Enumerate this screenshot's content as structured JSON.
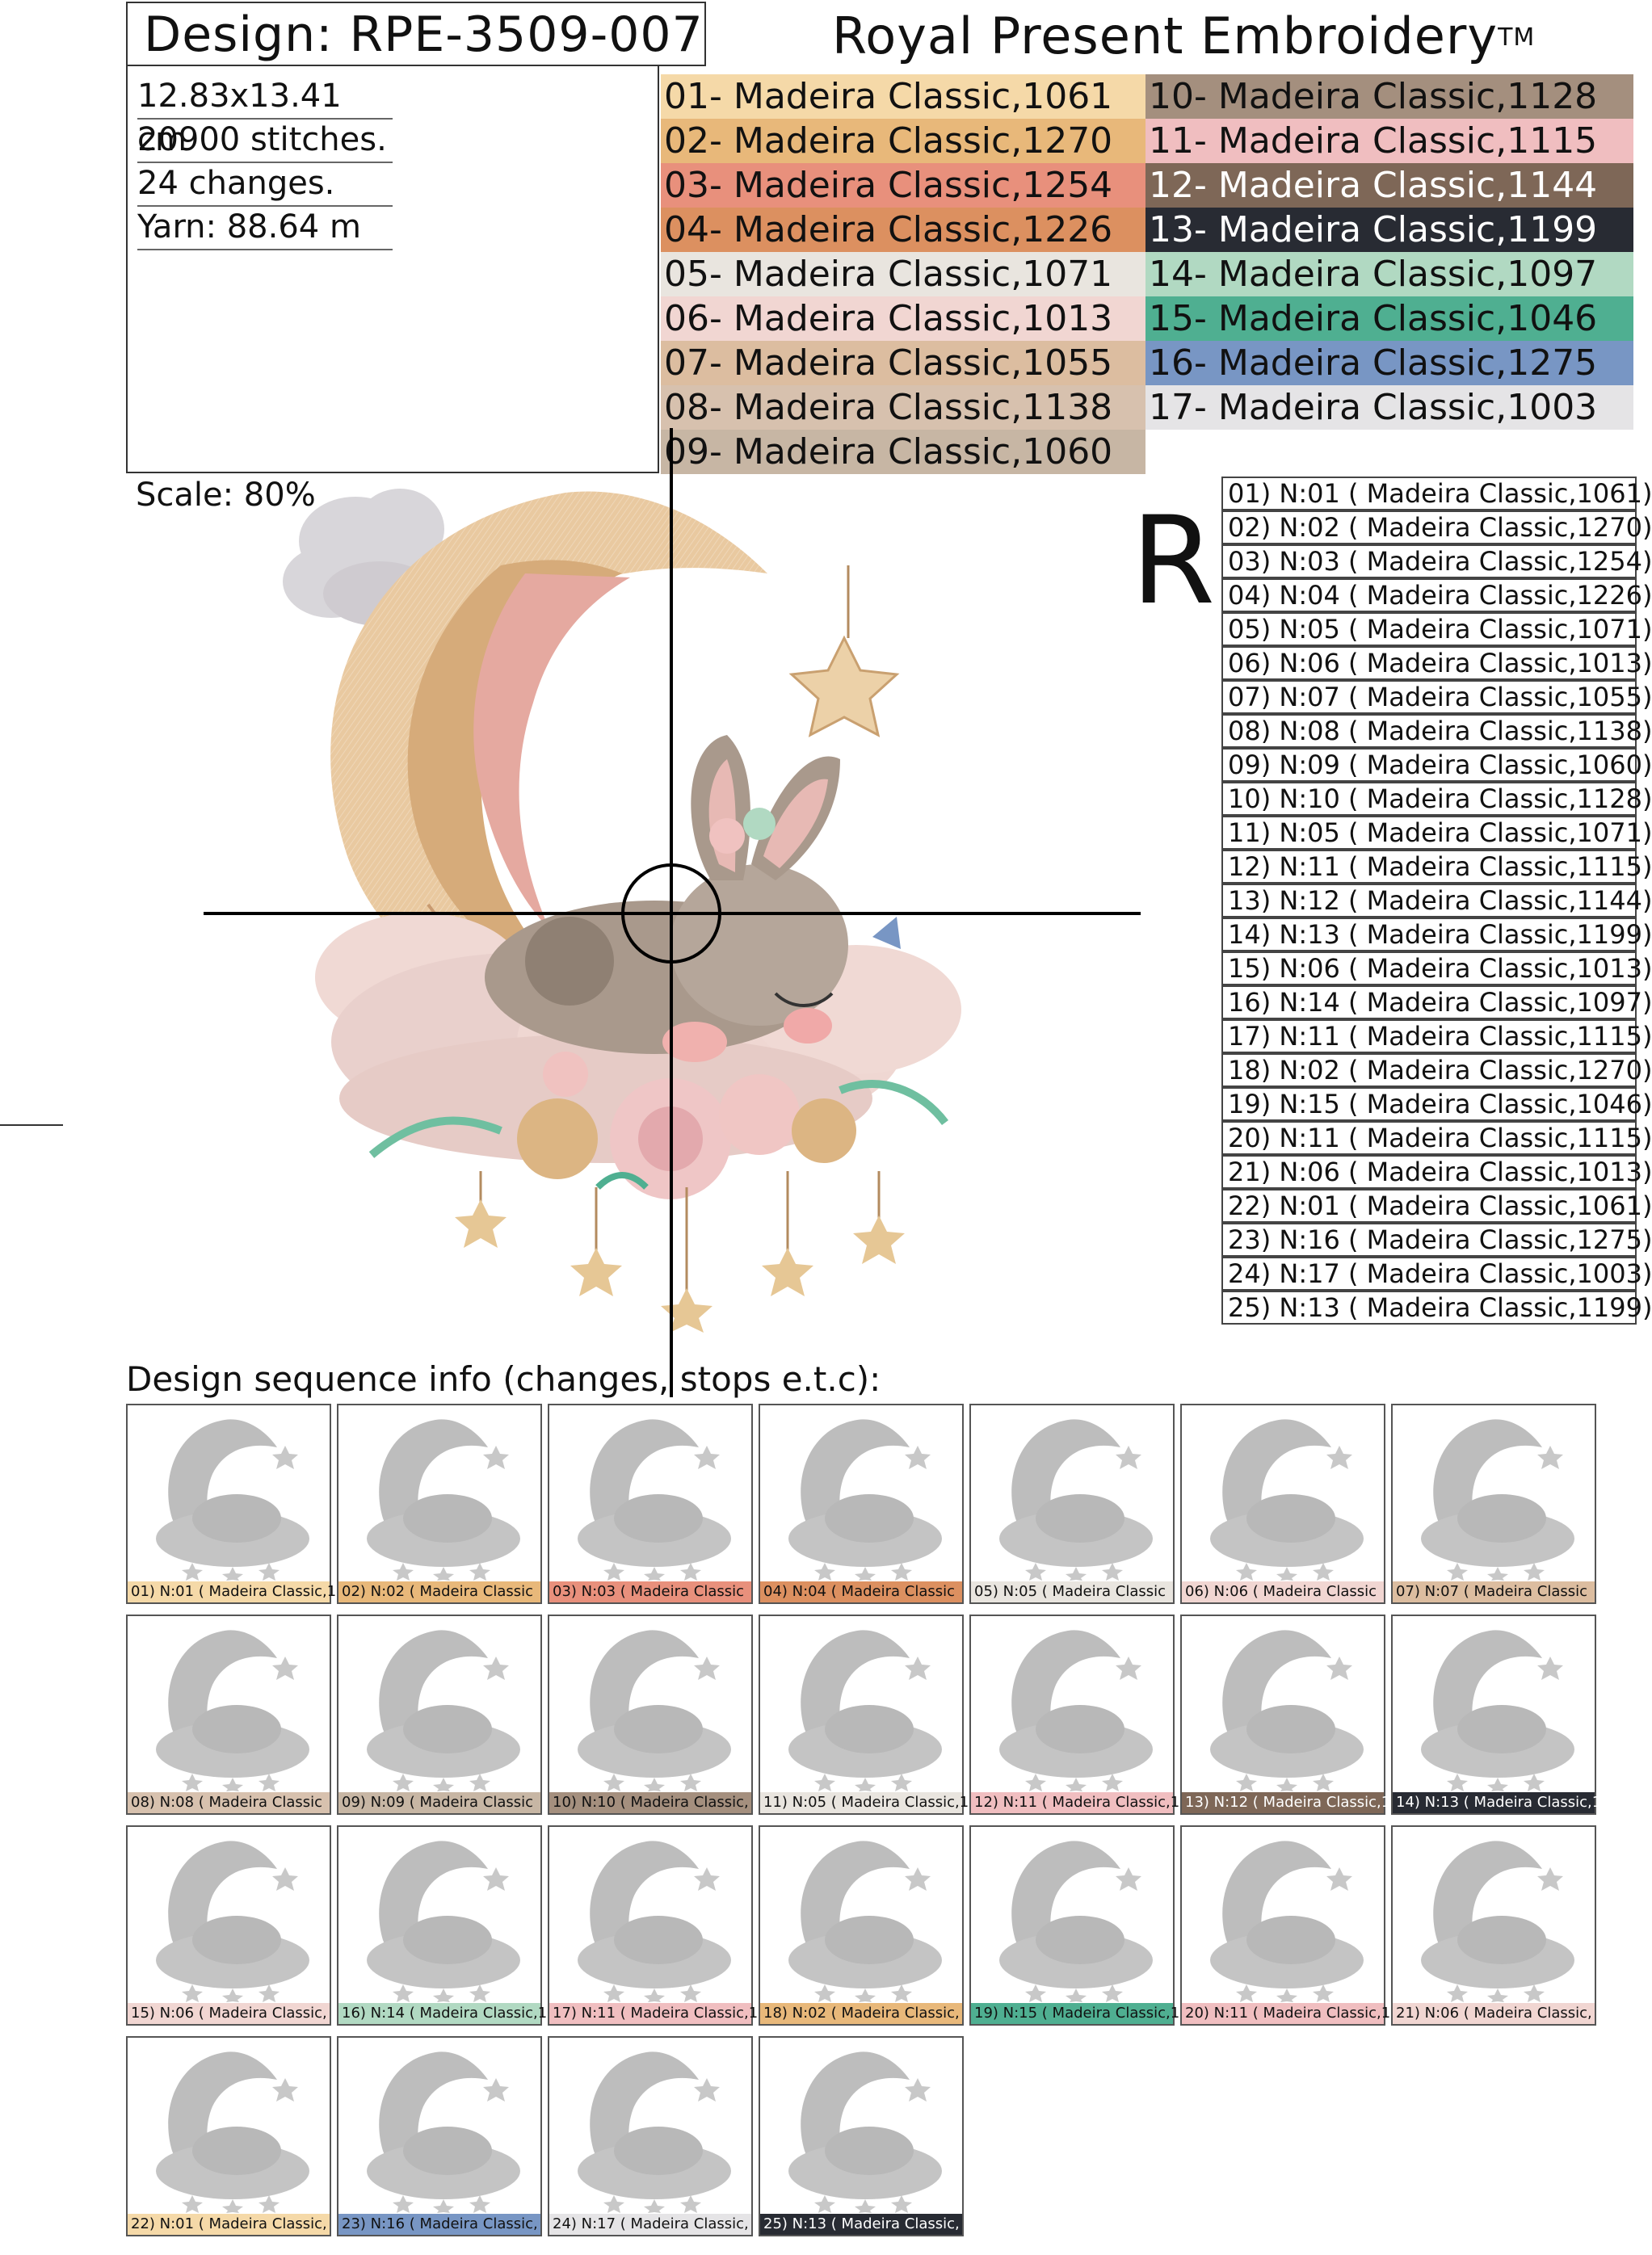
{
  "header": {
    "design_label": "Design: RPE-3509-007",
    "brand": "Royal Present Embroidery",
    "trademark": "TM"
  },
  "stats": {
    "size": "12.83x13.41 cm",
    "stitches": "20900 stitches.",
    "changes": "24 changes.",
    "yarn": "Yarn: 88.64 m"
  },
  "colors": [
    {
      "label": "01- Madeira Classic,1061",
      "hex": "#f5d9a8"
    },
    {
      "label": "02- Madeira Classic,1270",
      "hex": "#e8b87a"
    },
    {
      "label": "03- Madeira Classic,1254",
      "hex": "#e8907c"
    },
    {
      "label": "04- Madeira Classic,1226",
      "hex": "#dc9060"
    },
    {
      "label": "05- Madeira Classic,1071",
      "hex": "#e9e5df"
    },
    {
      "label": "06- Madeira Classic,1013",
      "hex": "#f1d6d2"
    },
    {
      "label": "07- Madeira Classic,1055",
      "hex": "#dcbda0"
    },
    {
      "label": "08- Madeira Classic,1138",
      "hex": "#d7c1ae"
    },
    {
      "label": "09- Madeira Classic,1060",
      "hex": "#c7b6a4"
    },
    {
      "label": "10- Madeira Classic,1128",
      "hex": "#a48f7e"
    },
    {
      "label": "11- Madeira Classic,1115",
      "hex": "#f0bec0"
    },
    {
      "label": "12- Madeira Classic,1144",
      "hex": "#7e6757",
      "light_text": true
    },
    {
      "label": "13- Madeira Classic,1199",
      "hex": "#282b33",
      "light_text": true
    },
    {
      "label": "14- Madeira Classic,1097",
      "hex": "#b1d9c2"
    },
    {
      "label": "15- Madeira Classic,1046",
      "hex": "#4faf91"
    },
    {
      "label": "16- Madeira Classic,1275",
      "hex": "#7896c4"
    },
    {
      "label": "17- Madeira Classic,1003",
      "hex": "#e5e4e6"
    }
  ],
  "scale_label": "Scale: 80%",
  "orientation_mark": "R",
  "sequence": [
    "01) N:01 ( Madeira Classic,1061)",
    "02) N:02 ( Madeira Classic,1270)",
    "03) N:03 ( Madeira Classic,1254)",
    "04) N:04 ( Madeira Classic,1226)",
    "05) N:05 ( Madeira Classic,1071)",
    "06) N:06 ( Madeira Classic,1013)",
    "07) N:07 ( Madeira Classic,1055)",
    "08) N:08 ( Madeira Classic,1138)",
    "09) N:09 ( Madeira Classic,1060)",
    "10) N:10 ( Madeira Classic,1128)",
    "11) N:05 ( Madeira Classic,1071)",
    "12) N:11 ( Madeira Classic,1115)",
    "13) N:12 ( Madeira Classic,1144)",
    "14) N:13 ( Madeira Classic,1199)",
    "15) N:06 ( Madeira Classic,1013)",
    "16) N:14 ( Madeira Classic,1097)",
    "17) N:11 ( Madeira Classic,1115)",
    "18) N:02 ( Madeira Classic,1270)",
    "19) N:15 ( Madeira Classic,1046)",
    "20) N:11 ( Madeira Classic,1115)",
    "21) N:06 ( Madeira Classic,1013)",
    "22) N:01 ( Madeira Classic,1061)",
    "23) N:16 ( Madeira Classic,1275)",
    "24) N:17 ( Madeira Classic,1003)",
    "25) N:13 ( Madeira Classic,1199)"
  ],
  "sequence_title": "Design sequence info (changes, stops e.t.c):",
  "thumbnails": [
    {
      "caption": "01) N:01 ( Madeira Classic,1",
      "color": "#f5d9a8"
    },
    {
      "caption": "02) N:02 ( Madeira Classic",
      "color": "#e8b87a"
    },
    {
      "caption": "03) N:03 ( Madeira Classic",
      "color": "#e8907c"
    },
    {
      "caption": "04) N:04 ( Madeira Classic",
      "color": "#dc9060"
    },
    {
      "caption": "05) N:05 ( Madeira Classic",
      "color": "#e9e5df"
    },
    {
      "caption": "06) N:06 ( Madeira Classic",
      "color": "#f1d6d2"
    },
    {
      "caption": "07) N:07 ( Madeira Classic",
      "color": "#dcbda0"
    },
    {
      "caption": "08) N:08 ( Madeira Classic",
      "color": "#d7c1ae"
    },
    {
      "caption": "09) N:09 ( Madeira Classic",
      "color": "#c7b6a4"
    },
    {
      "caption": "10) N:10 ( Madeira Classic,",
      "color": "#a48f7e"
    },
    {
      "caption": "11) N:05 ( Madeira Classic,1",
      "color": "#e9e5df"
    },
    {
      "caption": "12) N:11 ( Madeira Classic,1",
      "color": "#f0bec0"
    },
    {
      "caption": "13) N:12 ( Madeira Classic,1",
      "color": "#7e6757",
      "light_text": true
    },
    {
      "caption": "14) N:13 ( Madeira Classic,1",
      "color": "#282b33",
      "light_text": true
    },
    {
      "caption": "15) N:06 ( Madeira Classic,",
      "color": "#f1d6d2"
    },
    {
      "caption": "16) N:14 ( Madeira Classic,1",
      "color": "#b1d9c2"
    },
    {
      "caption": "17) N:11 ( Madeira Classic,1",
      "color": "#f0bec0"
    },
    {
      "caption": "18) N:02 ( Madeira Classic,",
      "color": "#e8b87a"
    },
    {
      "caption": "19) N:15 ( Madeira Classic,1",
      "color": "#4faf91"
    },
    {
      "caption": "20) N:11 ( Madeira Classic,1",
      "color": "#f0bec0"
    },
    {
      "caption": "21) N:06 ( Madeira Classic,",
      "color": "#f1d6d2"
    },
    {
      "caption": "22) N:01 ( Madeira Classic,",
      "color": "#f5d9a8"
    },
    {
      "caption": "23) N:16 ( Madeira Classic,",
      "color": "#7896c4"
    },
    {
      "caption": "24) N:17 ( Madeira Classic,",
      "color": "#e5e4e6"
    },
    {
      "caption": "25) N:13 ( Madeira Classic,",
      "color": "#282b33",
      "light_text": true
    }
  ]
}
